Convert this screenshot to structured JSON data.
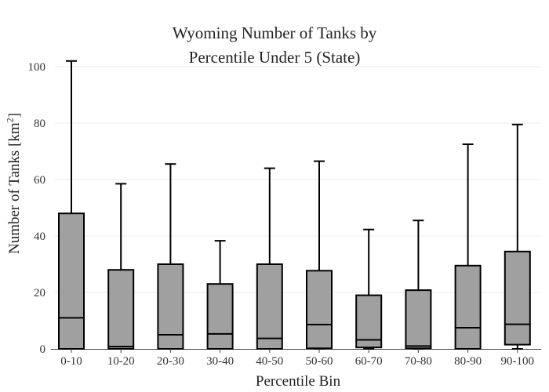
{
  "chart_data": {
    "type": "box",
    "title_lines": [
      "Wyoming Number of Tanks by",
      "Percentile Under 5 (State)"
    ],
    "xlabel": "Percentile Bin",
    "ylabel": {
      "prefix": "Number of Tanks  [km",
      "sup": "2",
      "suffix": "]"
    },
    "ylim": [
      0,
      100
    ],
    "yticks": [
      0,
      20,
      40,
      60,
      80,
      100
    ],
    "grid": "horizontal",
    "box_color": "#a0a0a0",
    "line_color": "#000000",
    "categories": [
      "0-10",
      "10-20",
      "20-30",
      "30-40",
      "40-50",
      "50-60",
      "60-70",
      "70-80",
      "80-90",
      "90-100"
    ],
    "boxes": [
      {
        "min": 0,
        "q1": 0,
        "median": 11,
        "q3": 48,
        "max": 102
      },
      {
        "min": 0,
        "q1": 0,
        "median": 0.8,
        "q3": 28,
        "max": 58.5
      },
      {
        "min": 0,
        "q1": 0,
        "median": 5,
        "q3": 30,
        "max": 65.5
      },
      {
        "min": 0,
        "q1": 0,
        "median": 5.3,
        "q3": 23,
        "max": 38.3
      },
      {
        "min": 0,
        "q1": 0,
        "median": 3.7,
        "q3": 30,
        "max": 64
      },
      {
        "min": 0,
        "q1": 0.2,
        "median": 8.6,
        "q3": 27.7,
        "max": 66.5
      },
      {
        "min": 0,
        "q1": 0.5,
        "median": 3.2,
        "q3": 19,
        "max": 42.3
      },
      {
        "min": 0,
        "q1": 0.2,
        "median": 1,
        "q3": 20.8,
        "max": 45.5
      },
      {
        "min": 0,
        "q1": 0,
        "median": 7.5,
        "q3": 29.5,
        "max": 72.5
      },
      {
        "min": 0,
        "q1": 1.5,
        "median": 8.7,
        "q3": 34.5,
        "max": 79.5
      }
    ]
  }
}
